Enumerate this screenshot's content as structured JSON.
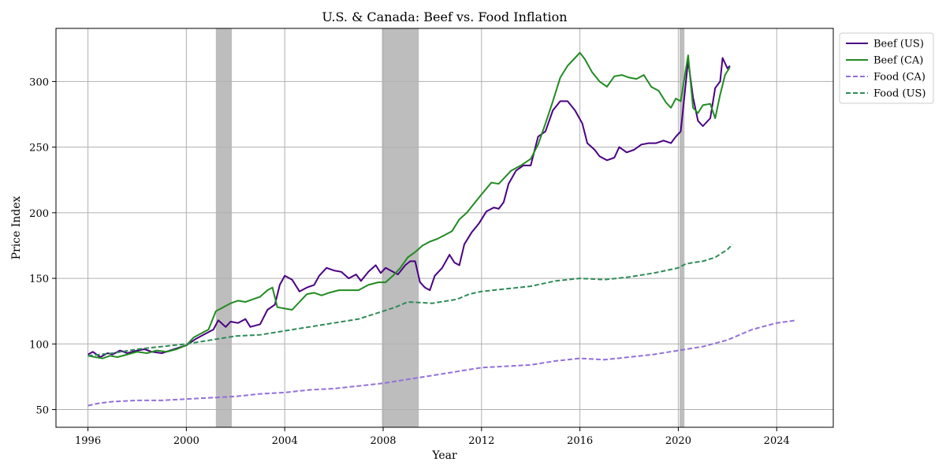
{
  "chart_data": {
    "type": "line",
    "title": "U.S. & Canada: Beef vs. Food Inflation",
    "xlabel": "Year",
    "ylabel": "Price Index",
    "xlim": [
      1994.7,
      2026.3
    ],
    "ylim": [
      36.5,
      340.5
    ],
    "x_ticks": [
      1996,
      2000,
      2004,
      2008,
      2012,
      2016,
      2020,
      2024
    ],
    "y_ticks": [
      50,
      100,
      150,
      200,
      250,
      300
    ],
    "grid": true,
    "legend_position": "outside-top-right",
    "recessions": [
      [
        2001.2,
        2001.85
      ],
      [
        2007.95,
        2009.45
      ],
      [
        2020.05,
        2020.25
      ]
    ],
    "series": [
      {
        "name": "Beef (US)",
        "color": "#4b0082",
        "dash": "solid",
        "points": [
          [
            1996,
            92
          ],
          [
            1996.2,
            94
          ],
          [
            1996.5,
            90
          ],
          [
            1996.8,
            93
          ],
          [
            1997,
            92
          ],
          [
            1997.3,
            95
          ],
          [
            1997.6,
            93
          ],
          [
            1998,
            95
          ],
          [
            1998.3,
            96
          ],
          [
            1998.6,
            94
          ],
          [
            1999,
            93
          ],
          [
            1999.5,
            96
          ],
          [
            2000,
            99
          ],
          [
            2000.4,
            104
          ],
          [
            2000.8,
            108
          ],
          [
            2001.1,
            111
          ],
          [
            2001.3,
            118
          ],
          [
            2001.6,
            113
          ],
          [
            2001.8,
            117
          ],
          [
            2002.1,
            116
          ],
          [
            2002.4,
            119
          ],
          [
            2002.6,
            113
          ],
          [
            2003,
            115
          ],
          [
            2003.3,
            126
          ],
          [
            2003.6,
            130
          ],
          [
            2003.8,
            145
          ],
          [
            2004,
            152
          ],
          [
            2004.3,
            149
          ],
          [
            2004.6,
            140
          ],
          [
            2004.9,
            143
          ],
          [
            2005.2,
            145
          ],
          [
            2005.4,
            152
          ],
          [
            2005.7,
            158
          ],
          [
            2006,
            156
          ],
          [
            2006.3,
            155
          ],
          [
            2006.6,
            150
          ],
          [
            2006.9,
            153
          ],
          [
            2007.1,
            148
          ],
          [
            2007.4,
            155
          ],
          [
            2007.7,
            160
          ],
          [
            2007.9,
            154
          ],
          [
            2008.1,
            158
          ],
          [
            2008.4,
            155
          ],
          [
            2008.6,
            153
          ],
          [
            2008.9,
            160
          ],
          [
            2009.1,
            163
          ],
          [
            2009.3,
            163
          ],
          [
            2009.5,
            147
          ],
          [
            2009.7,
            143
          ],
          [
            2009.9,
            141
          ],
          [
            2010.1,
            152
          ],
          [
            2010.4,
            158
          ],
          [
            2010.7,
            168
          ],
          [
            2010.9,
            162
          ],
          [
            2011.1,
            160
          ],
          [
            2011.3,
            176
          ],
          [
            2011.6,
            185
          ],
          [
            2011.9,
            192
          ],
          [
            2012.2,
            201
          ],
          [
            2012.5,
            204
          ],
          [
            2012.7,
            203
          ],
          [
            2012.9,
            208
          ],
          [
            2013.1,
            222
          ],
          [
            2013.4,
            232
          ],
          [
            2013.7,
            236
          ],
          [
            2014,
            236
          ],
          [
            2014.3,
            258
          ],
          [
            2014.6,
            262
          ],
          [
            2014.9,
            278
          ],
          [
            2015.2,
            285
          ],
          [
            2015.5,
            285
          ],
          [
            2015.8,
            278
          ],
          [
            2016.1,
            268
          ],
          [
            2016.3,
            253
          ],
          [
            2016.6,
            248
          ],
          [
            2016.8,
            243
          ],
          [
            2017.1,
            240
          ],
          [
            2017.4,
            242
          ],
          [
            2017.6,
            250
          ],
          [
            2017.9,
            246
          ],
          [
            2018.2,
            248
          ],
          [
            2018.5,
            252
          ],
          [
            2018.8,
            253
          ],
          [
            2019.1,
            253
          ],
          [
            2019.4,
            255
          ],
          [
            2019.7,
            253
          ],
          [
            2019.9,
            258
          ],
          [
            2020.1,
            262
          ],
          [
            2020.4,
            316
          ],
          [
            2020.6,
            288
          ],
          [
            2020.8,
            270
          ],
          [
            2021,
            266
          ],
          [
            2021.3,
            272
          ],
          [
            2021.5,
            295
          ],
          [
            2021.7,
            300
          ],
          [
            2021.8,
            318
          ],
          [
            2022,
            310
          ],
          [
            2022.1,
            312
          ]
        ]
      },
      {
        "name": "Beef (CA)",
        "color": "#228b22",
        "dash": "solid",
        "points": [
          [
            1996,
            91
          ],
          [
            1996.3,
            90
          ],
          [
            1996.6,
            89
          ],
          [
            1996.9,
            91
          ],
          [
            1997.2,
            90
          ],
          [
            1997.6,
            92
          ],
          [
            1998,
            94
          ],
          [
            1998.4,
            93
          ],
          [
            1998.8,
            95
          ],
          [
            1999.2,
            94
          ],
          [
            1999.6,
            96
          ],
          [
            2000,
            99
          ],
          [
            2000.3,
            105
          ],
          [
            2000.6,
            108
          ],
          [
            2000.9,
            111
          ],
          [
            2001.2,
            125
          ],
          [
            2001.5,
            128
          ],
          [
            2001.8,
            131
          ],
          [
            2002.1,
            133
          ],
          [
            2002.4,
            132
          ],
          [
            2002.7,
            134
          ],
          [
            2003,
            136
          ],
          [
            2003.3,
            141
          ],
          [
            2003.5,
            143
          ],
          [
            2003.7,
            128
          ],
          [
            2004,
            127
          ],
          [
            2004.3,
            126
          ],
          [
            2004.6,
            132
          ],
          [
            2004.9,
            138
          ],
          [
            2005.2,
            139
          ],
          [
            2005.5,
            137
          ],
          [
            2005.8,
            139
          ],
          [
            2006.2,
            141
          ],
          [
            2006.6,
            141
          ],
          [
            2007,
            141
          ],
          [
            2007.4,
            145
          ],
          [
            2007.8,
            147
          ],
          [
            2008.1,
            147
          ],
          [
            2008.4,
            152
          ],
          [
            2008.7,
            158
          ],
          [
            2009,
            166
          ],
          [
            2009.3,
            170
          ],
          [
            2009.6,
            175
          ],
          [
            2009.9,
            178
          ],
          [
            2010.2,
            180
          ],
          [
            2010.5,
            183
          ],
          [
            2010.8,
            186
          ],
          [
            2011.1,
            195
          ],
          [
            2011.4,
            200
          ],
          [
            2011.7,
            207
          ],
          [
            2012,
            214
          ],
          [
            2012.4,
            223
          ],
          [
            2012.7,
            222
          ],
          [
            2012.9,
            226
          ],
          [
            2013.2,
            232
          ],
          [
            2013.6,
            236
          ],
          [
            2014,
            241
          ],
          [
            2014.3,
            252
          ],
          [
            2014.6,
            268
          ],
          [
            2014.9,
            285
          ],
          [
            2015.2,
            303
          ],
          [
            2015.5,
            312
          ],
          [
            2015.8,
            318
          ],
          [
            2016,
            322
          ],
          [
            2016.2,
            317
          ],
          [
            2016.5,
            307
          ],
          [
            2016.8,
            300
          ],
          [
            2017.1,
            296
          ],
          [
            2017.4,
            304
          ],
          [
            2017.7,
            305
          ],
          [
            2018,
            303
          ],
          [
            2018.3,
            302
          ],
          [
            2018.6,
            305
          ],
          [
            2018.9,
            296
          ],
          [
            2019.2,
            293
          ],
          [
            2019.5,
            284
          ],
          [
            2019.7,
            280
          ],
          [
            2019.9,
            287
          ],
          [
            2020.1,
            285
          ],
          [
            2020.4,
            320
          ],
          [
            2020.6,
            280
          ],
          [
            2020.8,
            276
          ],
          [
            2021,
            282
          ],
          [
            2021.3,
            283
          ],
          [
            2021.5,
            272
          ],
          [
            2021.7,
            290
          ],
          [
            2021.9,
            305
          ],
          [
            2022.1,
            311
          ]
        ]
      },
      {
        "name": "Food (CA)",
        "color": "#9370db",
        "dash": "dashed",
        "points": [
          [
            1996,
            53
          ],
          [
            1996.5,
            55
          ],
          [
            1997,
            56
          ],
          [
            1998,
            57
          ],
          [
            1999,
            57
          ],
          [
            2000,
            58
          ],
          [
            2001,
            59
          ],
          [
            2002,
            60
          ],
          [
            2003,
            62
          ],
          [
            2004,
            63
          ],
          [
            2005,
            65
          ],
          [
            2006,
            66
          ],
          [
            2007,
            68
          ],
          [
            2008,
            70
          ],
          [
            2009,
            73
          ],
          [
            2010,
            76
          ],
          [
            2011,
            79
          ],
          [
            2012,
            82
          ],
          [
            2013,
            83
          ],
          [
            2014,
            84
          ],
          [
            2015,
            87
          ],
          [
            2016,
            89
          ],
          [
            2017,
            88
          ],
          [
            2018,
            90
          ],
          [
            2019,
            92
          ],
          [
            2020,
            95
          ],
          [
            2021,
            98
          ],
          [
            2022,
            103
          ],
          [
            2023,
            111
          ],
          [
            2024,
            116
          ],
          [
            2024.8,
            118
          ]
        ]
      },
      {
        "name": "Food (US)",
        "color": "#2e8b57",
        "dash": "dashed",
        "points": [
          [
            1996,
            91
          ],
          [
            1997,
            93
          ],
          [
            1998,
            96
          ],
          [
            1999,
            98
          ],
          [
            2000,
            100
          ],
          [
            2001,
            103
          ],
          [
            2002,
            106
          ],
          [
            2003,
            107
          ],
          [
            2004,
            110
          ],
          [
            2005,
            113
          ],
          [
            2006,
            116
          ],
          [
            2007,
            119
          ],
          [
            2008,
            125
          ],
          [
            2008.5,
            128
          ],
          [
            2009,
            132
          ],
          [
            2010,
            131
          ],
          [
            2011,
            134
          ],
          [
            2011.5,
            138
          ],
          [
            2012,
            140
          ],
          [
            2013,
            142
          ],
          [
            2014,
            144
          ],
          [
            2015,
            148
          ],
          [
            2016,
            150
          ],
          [
            2017,
            149
          ],
          [
            2018,
            151
          ],
          [
            2019,
            154
          ],
          [
            2020,
            158
          ],
          [
            2020.3,
            161
          ],
          [
            2020.6,
            162
          ],
          [
            2021,
            163
          ],
          [
            2021.5,
            166
          ],
          [
            2022,
            172
          ],
          [
            2022.2,
            176
          ]
        ]
      }
    ]
  }
}
